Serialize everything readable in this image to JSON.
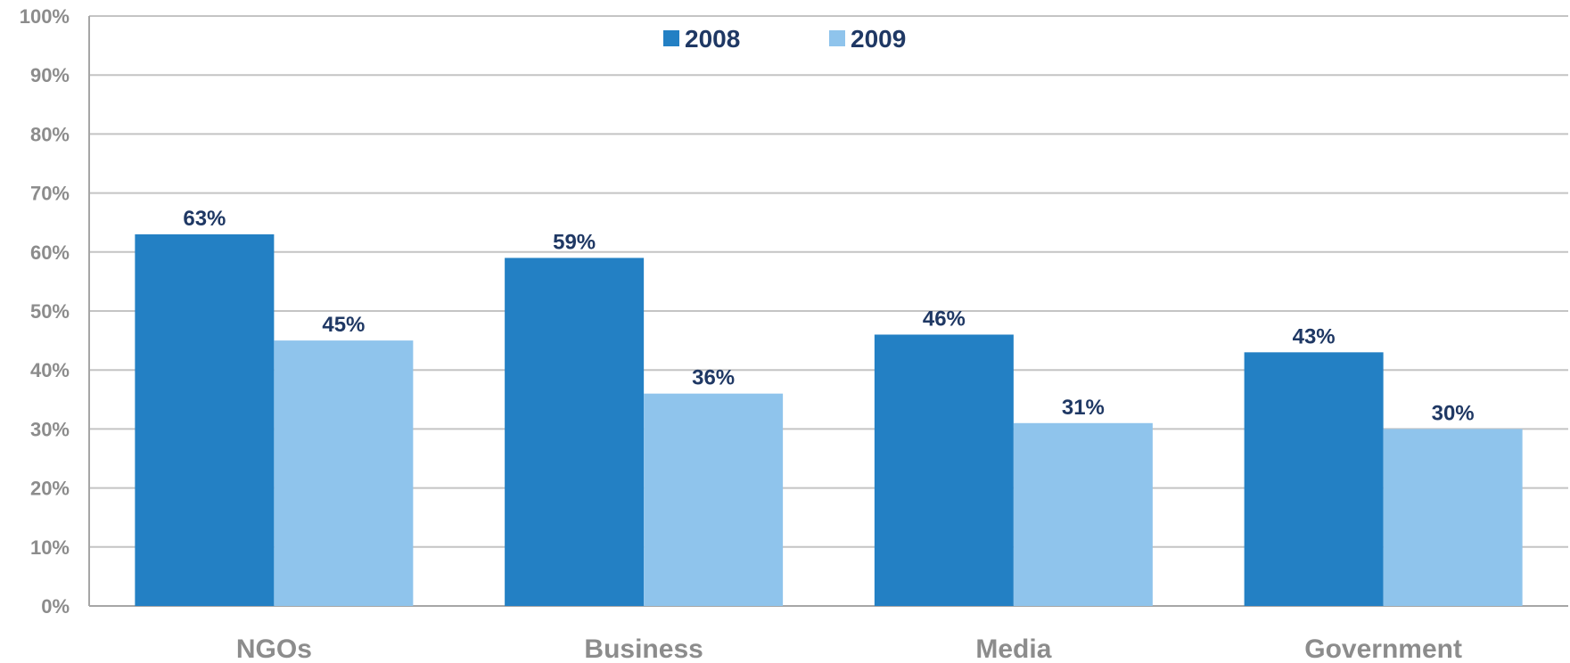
{
  "chart_data": {
    "type": "bar",
    "categories": [
      "NGOs",
      "Business",
      "Media",
      "Government"
    ],
    "series": [
      {
        "name": "2008",
        "color": "#2380c4",
        "values": [
          63,
          59,
          46,
          43
        ],
        "labels": [
          "63%",
          "59%",
          "46%",
          "43%"
        ]
      },
      {
        "name": "2009",
        "color": "#8fc4ec",
        "values": [
          45,
          36,
          31,
          30
        ],
        "labels": [
          "45%",
          "36%",
          "31%",
          "30%"
        ]
      }
    ],
    "ylim": [
      0,
      100
    ],
    "yticks": [
      0,
      10,
      20,
      30,
      40,
      50,
      60,
      70,
      80,
      90,
      100
    ],
    "ytick_labels": [
      "0%",
      "10%",
      "20%",
      "30%",
      "40%",
      "50%",
      "60%",
      "70%",
      "80%",
      "90%",
      "100%"
    ],
    "grid": true,
    "legend_position": "top-center",
    "title": "",
    "xlabel": "",
    "ylabel": ""
  }
}
